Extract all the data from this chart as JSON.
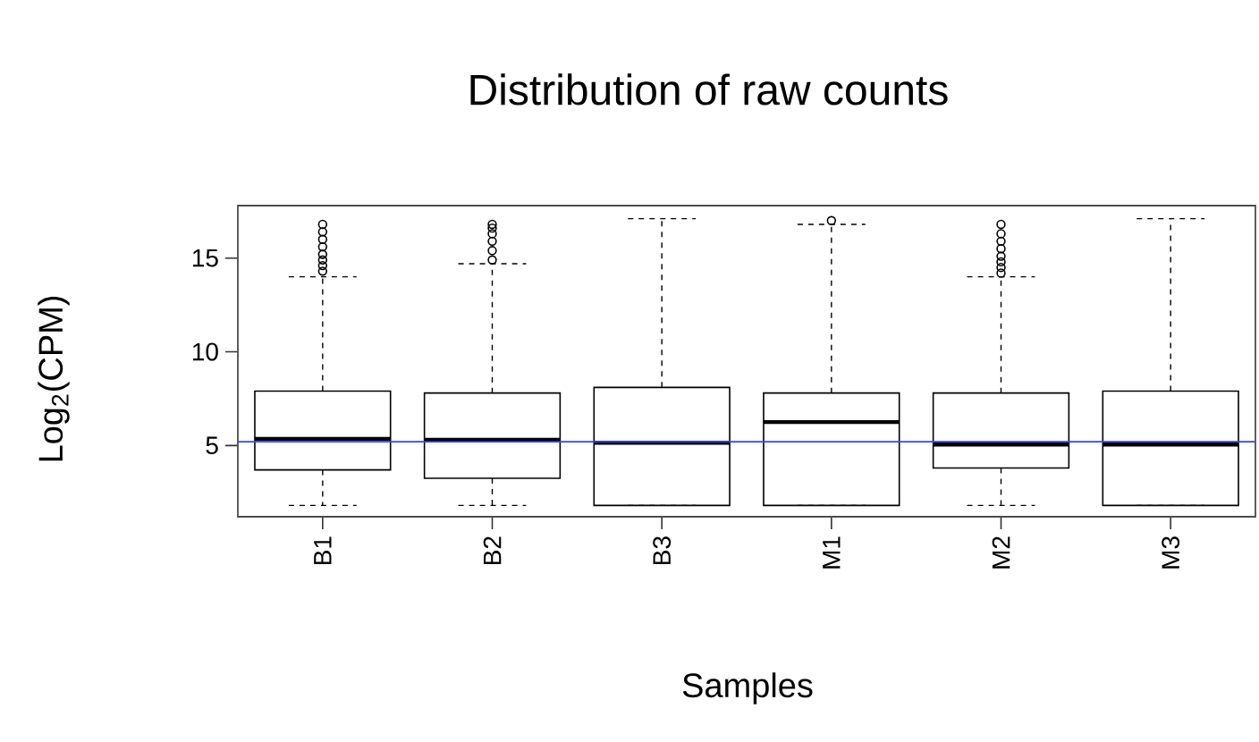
{
  "chart_data": {
    "type": "box",
    "title": "Distribution of raw counts",
    "xlabel": "Samples",
    "ylabel": "Log$_{2}$(CPM)",
    "categories": [
      "B1",
      "B2",
      "B3",
      "M1",
      "M2",
      "M3"
    ],
    "boxes": [
      {
        "low": 1.8,
        "q1": 3.7,
        "median": 5.35,
        "q3": 7.9,
        "high": 14.0,
        "outliers": [
          14.3,
          14.6,
          14.9,
          15.2,
          15.6,
          16.0,
          16.4,
          16.8
        ]
      },
      {
        "low": 1.8,
        "q1": 3.25,
        "median": 5.3,
        "q3": 7.8,
        "high": 14.7,
        "outliers": [
          14.9,
          15.4,
          15.9,
          16.3,
          16.6,
          16.8
        ]
      },
      {
        "low": 1.8,
        "q1": 1.8,
        "median": 5.15,
        "q3": 8.1,
        "high": 17.1
      },
      {
        "low": 1.8,
        "q1": 1.8,
        "median": 6.25,
        "q3": 7.8,
        "high": 16.8,
        "outliers": [
          17.0
        ]
      },
      {
        "low": 1.8,
        "q1": 3.8,
        "median": 5.05,
        "q3": 7.8,
        "high": 14.0,
        "outliers": [
          14.2,
          14.5,
          14.8,
          15.1,
          15.5,
          15.9,
          16.3,
          16.8
        ]
      },
      {
        "low": 1.8,
        "q1": 1.8,
        "median": 5.05,
        "q3": 7.9,
        "high": 17.1
      }
    ],
    "ylim": [
      1.2,
      17.8
    ],
    "yticks": [
      5,
      10,
      15
    ],
    "ref_lines": [
      {
        "axis": "y",
        "value": 5.2,
        "color": "#3344ff"
      }
    ]
  }
}
